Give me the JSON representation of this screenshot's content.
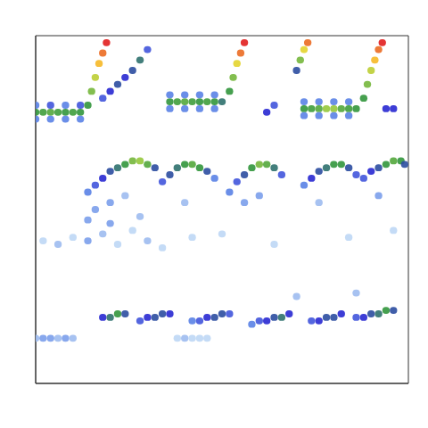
{
  "chart_data": {
    "type": "heatmap",
    "xlim": [
      0,
      100
    ],
    "ylim": [
      0,
      100
    ],
    "tick_labels": false,
    "cells": [
      [
        0,
        78,
        0.6
      ],
      [
        2,
        78,
        0.62
      ],
      [
        4,
        78,
        0.65
      ],
      [
        6,
        78,
        0.62
      ],
      [
        8,
        78,
        0.6
      ],
      [
        10,
        78,
        0.62
      ],
      [
        12,
        78,
        0.6
      ],
      [
        0,
        76,
        0.35
      ],
      [
        4,
        76,
        0.35
      ],
      [
        8,
        76,
        0.35
      ],
      [
        12,
        76,
        0.35
      ],
      [
        0,
        80,
        0.35
      ],
      [
        4,
        80,
        0.4
      ],
      [
        8,
        80,
        0.35
      ],
      [
        12,
        80,
        0.4
      ],
      [
        14,
        80,
        0.6
      ],
      [
        15,
        84,
        0.7
      ],
      [
        16,
        88,
        0.8
      ],
      [
        17,
        92,
        0.9
      ],
      [
        18,
        95,
        0.95
      ],
      [
        19,
        98,
        1
      ],
      [
        18,
        82,
        0.4
      ],
      [
        20,
        84,
        0.45
      ],
      [
        22,
        86,
        0.5
      ],
      [
        24,
        88,
        0.45
      ],
      [
        26,
        90,
        0.5
      ],
      [
        28,
        93,
        0.55
      ],
      [
        30,
        96,
        0.4
      ],
      [
        36,
        81,
        0.6
      ],
      [
        38,
        81,
        0.62
      ],
      [
        40,
        81,
        0.65
      ],
      [
        42,
        81,
        0.62
      ],
      [
        44,
        81,
        0.6
      ],
      [
        46,
        81,
        0.62
      ],
      [
        48,
        81,
        0.6
      ],
      [
        50,
        81,
        0.55
      ],
      [
        36,
        79,
        0.35
      ],
      [
        40,
        79,
        0.35
      ],
      [
        44,
        79,
        0.35
      ],
      [
        48,
        79,
        0.35
      ],
      [
        36,
        83,
        0.35
      ],
      [
        40,
        83,
        0.35
      ],
      [
        44,
        83,
        0.35
      ],
      [
        48,
        83,
        0.35
      ],
      [
        52,
        84,
        0.6
      ],
      [
        53,
        88,
        0.7
      ],
      [
        54,
        92,
        0.85
      ],
      [
        55,
        95,
        0.95
      ],
      [
        56,
        98,
        1
      ],
      [
        62,
        78,
        0.45
      ],
      [
        64,
        80,
        0.4
      ],
      [
        70,
        90,
        0.5
      ],
      [
        71,
        93,
        0.7
      ],
      [
        72,
        96,
        0.85
      ],
      [
        73,
        98,
        0.95
      ],
      [
        72,
        79,
        0.6
      ],
      [
        74,
        79,
        0.62
      ],
      [
        76,
        79,
        0.65
      ],
      [
        78,
        79,
        0.75
      ],
      [
        80,
        79,
        0.75
      ],
      [
        82,
        79,
        0.65
      ],
      [
        84,
        79,
        0.62
      ],
      [
        86,
        79,
        0.6
      ],
      [
        72,
        77,
        0.35
      ],
      [
        76,
        77,
        0.35
      ],
      [
        80,
        77,
        0.35
      ],
      [
        84,
        77,
        0.35
      ],
      [
        72,
        81,
        0.35
      ],
      [
        76,
        81,
        0.35
      ],
      [
        80,
        81,
        0.35
      ],
      [
        84,
        81,
        0.35
      ],
      [
        88,
        82,
        0.6
      ],
      [
        89,
        86,
        0.7
      ],
      [
        90,
        90,
        0.8
      ],
      [
        91,
        93,
        0.9
      ],
      [
        92,
        96,
        0.95
      ],
      [
        93,
        98,
        1
      ],
      [
        94,
        79,
        0.45
      ],
      [
        96,
        79,
        0.45
      ],
      [
        14,
        55,
        0.35
      ],
      [
        16,
        57,
        0.4
      ],
      [
        18,
        59,
        0.45
      ],
      [
        20,
        61,
        0.5
      ],
      [
        22,
        62,
        0.55
      ],
      [
        24,
        63,
        0.6
      ],
      [
        26,
        64,
        0.7
      ],
      [
        28,
        64,
        0.75
      ],
      [
        30,
        63,
        0.65
      ],
      [
        32,
        62,
        0.5
      ],
      [
        34,
        58,
        0.4
      ],
      [
        36,
        60,
        0.5
      ],
      [
        38,
        62,
        0.55
      ],
      [
        40,
        63,
        0.6
      ],
      [
        42,
        63,
        0.65
      ],
      [
        44,
        62,
        0.6
      ],
      [
        46,
        61,
        0.5
      ],
      [
        48,
        59,
        0.35
      ],
      [
        52,
        55,
        0.35
      ],
      [
        54,
        58,
        0.4
      ],
      [
        56,
        60,
        0.5
      ],
      [
        58,
        62,
        0.6
      ],
      [
        60,
        63,
        0.7
      ],
      [
        62,
        63,
        0.65
      ],
      [
        64,
        62,
        0.55
      ],
      [
        66,
        60,
        0.4
      ],
      [
        72,
        57,
        0.35
      ],
      [
        74,
        59,
        0.45
      ],
      [
        76,
        61,
        0.5
      ],
      [
        78,
        62,
        0.55
      ],
      [
        80,
        63,
        0.6
      ],
      [
        82,
        63,
        0.6
      ],
      [
        84,
        62,
        0.5
      ],
      [
        86,
        60,
        0.4
      ],
      [
        88,
        59,
        0.4
      ],
      [
        90,
        61,
        0.45
      ],
      [
        92,
        62,
        0.5
      ],
      [
        94,
        63,
        0.6
      ],
      [
        96,
        64,
        0.65
      ],
      [
        98,
        64,
        0.6
      ],
      [
        99,
        63,
        0.5
      ],
      [
        16,
        50,
        0.3
      ],
      [
        20,
        52,
        0.3
      ],
      [
        24,
        54,
        0.25
      ],
      [
        40,
        52,
        0.25
      ],
      [
        56,
        52,
        0.3
      ],
      [
        60,
        54,
        0.3
      ],
      [
        76,
        52,
        0.25
      ],
      [
        92,
        54,
        0.3
      ],
      [
        14,
        47,
        0.3
      ],
      [
        20,
        46,
        0.3
      ],
      [
        28,
        48,
        0.25
      ],
      [
        2,
        41,
        0.2
      ],
      [
        6,
        40,
        0.25
      ],
      [
        10,
        42,
        0.2
      ],
      [
        14,
        41,
        0.3
      ],
      [
        18,
        43,
        0.25
      ],
      [
        22,
        40,
        0.2
      ],
      [
        26,
        44,
        0.2
      ],
      [
        30,
        41,
        0.25
      ],
      [
        34,
        39,
        0.2
      ],
      [
        42,
        42,
        0.2
      ],
      [
        50,
        43,
        0.2
      ],
      [
        64,
        40,
        0.2
      ],
      [
        84,
        42,
        0.2
      ],
      [
        96,
        44,
        0.2
      ],
      [
        18,
        19,
        0.45
      ],
      [
        20,
        19,
        0.55
      ],
      [
        22,
        20,
        0.6
      ],
      [
        24,
        20,
        0.5
      ],
      [
        28,
        18,
        0.4
      ],
      [
        30,
        19,
        0.45
      ],
      [
        32,
        19,
        0.5
      ],
      [
        34,
        20,
        0.5
      ],
      [
        36,
        20,
        0.45
      ],
      [
        42,
        18,
        0.35
      ],
      [
        44,
        18,
        0.4
      ],
      [
        46,
        19,
        0.45
      ],
      [
        48,
        19,
        0.5
      ],
      [
        50,
        20,
        0.5
      ],
      [
        52,
        20,
        0.4
      ],
      [
        58,
        17,
        0.35
      ],
      [
        60,
        18,
        0.4
      ],
      [
        62,
        18,
        0.45
      ],
      [
        64,
        19,
        0.5
      ],
      [
        66,
        19,
        0.55
      ],
      [
        68,
        20,
        0.45
      ],
      [
        74,
        18,
        0.4
      ],
      [
        76,
        18,
        0.45
      ],
      [
        78,
        19,
        0.5
      ],
      [
        80,
        19,
        0.5
      ],
      [
        82,
        20,
        0.45
      ],
      [
        86,
        19,
        0.4
      ],
      [
        88,
        19,
        0.45
      ],
      [
        90,
        20,
        0.5
      ],
      [
        92,
        20,
        0.55
      ],
      [
        94,
        21,
        0.6
      ],
      [
        96,
        21,
        0.5
      ],
      [
        0,
        13,
        0.25
      ],
      [
        2,
        13,
        0.3
      ],
      [
        4,
        13,
        0.3
      ],
      [
        6,
        13,
        0.25
      ],
      [
        8,
        13,
        0.3
      ],
      [
        10,
        13,
        0.25
      ],
      [
        38,
        13,
        0.2
      ],
      [
        40,
        13,
        0.25
      ],
      [
        42,
        13,
        0.2
      ],
      [
        44,
        13,
        0.2
      ],
      [
        46,
        13,
        0.2
      ],
      [
        70,
        25,
        0.25
      ],
      [
        86,
        26,
        0.25
      ]
    ]
  }
}
